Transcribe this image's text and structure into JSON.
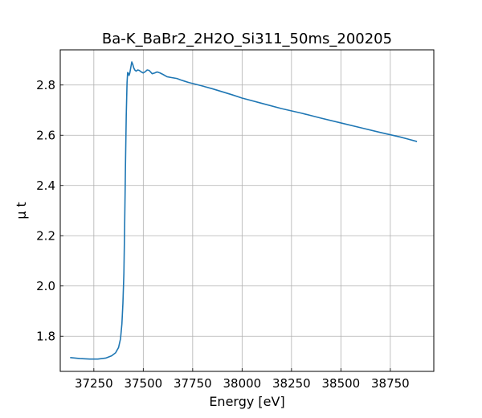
{
  "chart_data": {
    "type": "line",
    "title": "Ba-K_BaBr2_2H2O_Si311_50ms_200205",
    "xlabel": "Energy [eV]",
    "ylabel": "μ t",
    "xlim": [
      37080,
      38970
    ],
    "ylim": [
      1.66,
      2.94
    ],
    "xticks": [
      37250,
      37500,
      37750,
      38000,
      38250,
      38500,
      38750
    ],
    "yticks": [
      1.8,
      2.0,
      2.2,
      2.4,
      2.6,
      2.8
    ],
    "xtick_labels": [
      "37250",
      "37500",
      "37750",
      "38000",
      "38250",
      "38500",
      "38750"
    ],
    "ytick_labels": [
      "1.8",
      "2.0",
      "2.2",
      "2.4",
      "2.6",
      "2.8"
    ],
    "grid": true,
    "line_color": "#1f77b4",
    "series": [
      {
        "x": [
          37130,
          37180,
          37230,
          37270,
          37310,
          37340,
          37360,
          37375,
          37385,
          37392,
          37397,
          37402,
          37406,
          37410,
          37414,
          37418,
          37421,
          37424,
          37428,
          37432,
          37437,
          37442,
          37447,
          37452,
          37457,
          37464,
          37472,
          37480,
          37490,
          37500,
          37510,
          37520,
          37530,
          37545,
          37558,
          37570,
          37585,
          37600,
          37620,
          37640,
          37655,
          37670,
          37690,
          37710,
          37730,
          37760,
          37800,
          37850,
          37900,
          37950,
          38000,
          38100,
          38200,
          38300,
          38400,
          38500,
          38600,
          38700,
          38800,
          38885
        ],
        "y": [
          1.715,
          1.711,
          1.709,
          1.709,
          1.713,
          1.722,
          1.734,
          1.755,
          1.79,
          1.85,
          1.93,
          2.05,
          2.25,
          2.48,
          2.68,
          2.81,
          2.85,
          2.847,
          2.838,
          2.848,
          2.87,
          2.892,
          2.882,
          2.868,
          2.86,
          2.855,
          2.86,
          2.858,
          2.852,
          2.848,
          2.853,
          2.86,
          2.858,
          2.845,
          2.848,
          2.852,
          2.848,
          2.842,
          2.833,
          2.83,
          2.828,
          2.826,
          2.82,
          2.815,
          2.81,
          2.804,
          2.796,
          2.785,
          2.773,
          2.761,
          2.748,
          2.727,
          2.706,
          2.688,
          2.668,
          2.649,
          2.63,
          2.611,
          2.593,
          2.575
        ]
      }
    ]
  }
}
